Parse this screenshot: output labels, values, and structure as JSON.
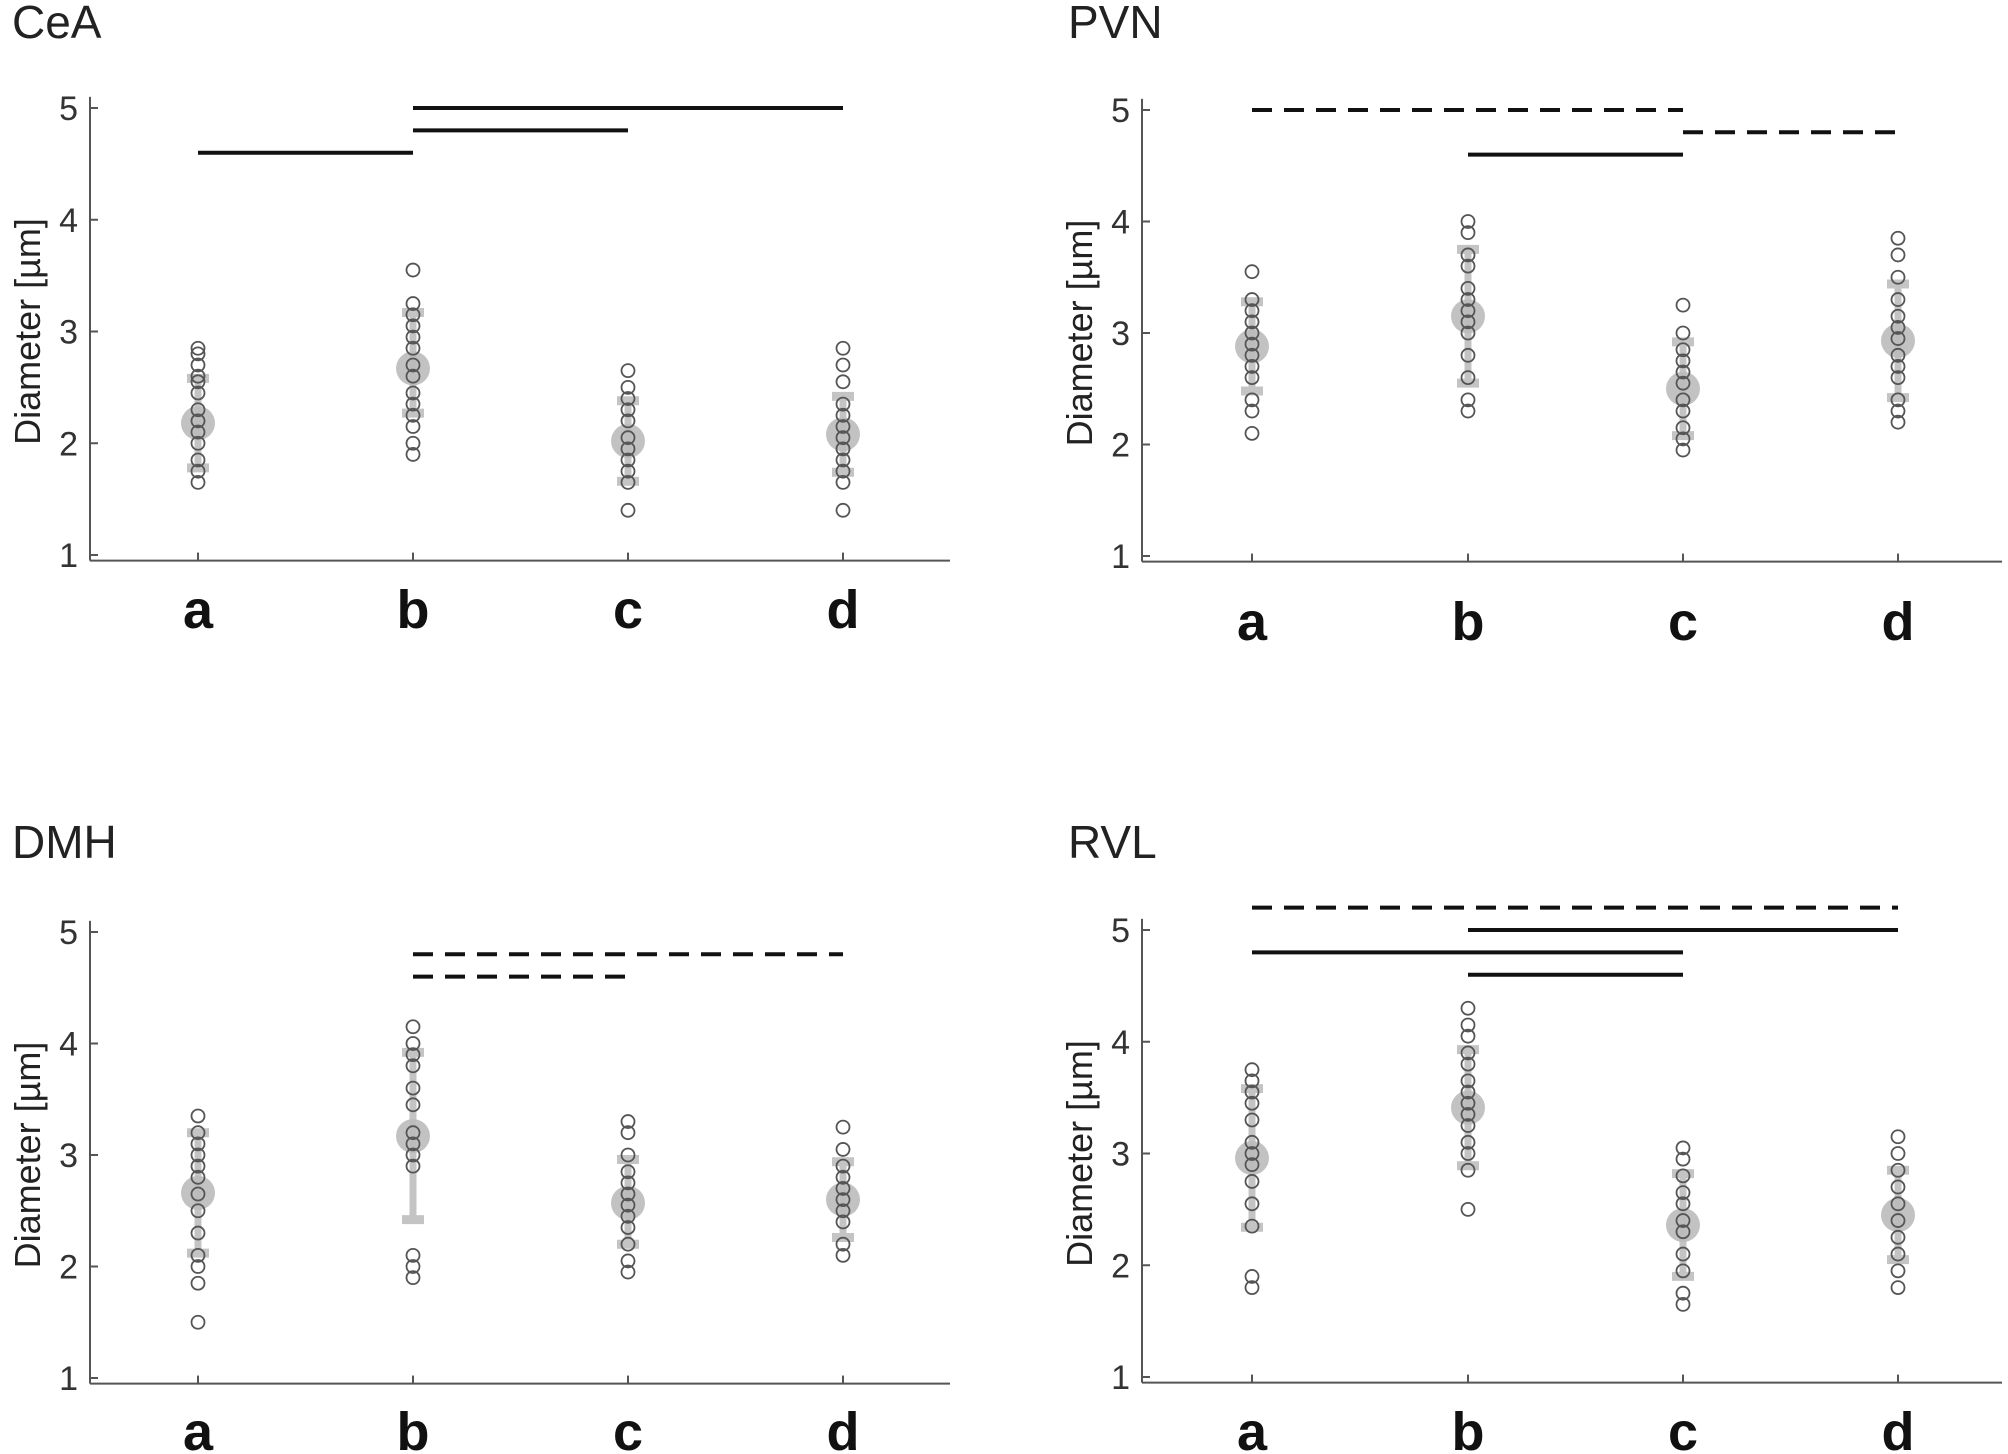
{
  "chart_data": [
    {
      "type": "scatter",
      "title": "CeA",
      "ylabel": "Diameter [µm]",
      "categories": [
        "a",
        "b",
        "c",
        "d"
      ],
      "yticks": [
        1,
        2,
        3,
        4,
        5
      ],
      "ylim": [
        0.95,
        5.1
      ],
      "points": [
        [
          1.65,
          1.75,
          1.85,
          2.0,
          2.1,
          2.2,
          2.3,
          2.45,
          2.55,
          2.6,
          2.7,
          2.8,
          2.85
        ],
        [
          1.9,
          2.0,
          2.15,
          2.25,
          2.35,
          2.45,
          2.6,
          2.7,
          2.85,
          2.95,
          3.05,
          3.15,
          3.25,
          3.55
        ],
        [
          1.4,
          1.65,
          1.75,
          1.85,
          1.95,
          2.05,
          2.2,
          2.3,
          2.4,
          2.5,
          2.65
        ],
        [
          1.4,
          1.65,
          1.75,
          1.85,
          1.95,
          2.05,
          2.15,
          2.25,
          2.35,
          2.55,
          2.7,
          2.85
        ]
      ],
      "mean": [
        2.18,
        2.67,
        2.02,
        2.08
      ],
      "sd": [
        [
          1.78,
          2.58
        ],
        [
          2.27,
          3.17
        ],
        [
          1.66,
          2.38
        ],
        [
          1.74,
          2.42
        ]
      ],
      "significance": [
        {
          "from": "a",
          "to": "b",
          "level": 4.6,
          "style": "solid"
        },
        {
          "from": "b",
          "to": "c",
          "level": 4.8,
          "style": "solid"
        },
        {
          "from": "b",
          "to": "d",
          "level": 5.0,
          "style": "solid"
        }
      ]
    },
    {
      "type": "scatter",
      "title": "PVN",
      "ylabel": "Diameter [µm]",
      "categories": [
        "a",
        "b",
        "c",
        "d"
      ],
      "yticks": [
        1,
        2,
        3,
        4,
        5
      ],
      "ylim": [
        0.95,
        5.1
      ],
      "points": [
        [
          2.1,
          2.3,
          2.4,
          2.6,
          2.7,
          2.8,
          2.9,
          3.0,
          3.1,
          3.2,
          3.3,
          3.55
        ],
        [
          2.3,
          2.4,
          2.6,
          2.8,
          3.0,
          3.1,
          3.2,
          3.3,
          3.4,
          3.6,
          3.7,
          3.9,
          4.0
        ],
        [
          1.95,
          2.05,
          2.15,
          2.3,
          2.4,
          2.55,
          2.65,
          2.75,
          2.85,
          3.0,
          3.25
        ],
        [
          2.2,
          2.3,
          2.4,
          2.6,
          2.7,
          2.8,
          2.95,
          3.05,
          3.15,
          3.3,
          3.5,
          3.7,
          3.85
        ]
      ],
      "mean": [
        2.88,
        3.15,
        2.5,
        2.93
      ],
      "sd": [
        [
          2.48,
          3.28
        ],
        [
          2.55,
          3.75
        ],
        [
          2.08,
          2.92
        ],
        [
          2.42,
          3.44
        ]
      ],
      "significance": [
        {
          "from": "a",
          "to": "c",
          "level": 5.0,
          "style": "dashed"
        },
        {
          "from": "c",
          "to": "d",
          "level": 4.8,
          "style": "dashed"
        },
        {
          "from": "b",
          "to": "c",
          "level": 4.6,
          "style": "solid"
        }
      ]
    },
    {
      "type": "scatter",
      "title": "DMH",
      "ylabel": "Diameter [µm]",
      "categories": [
        "a",
        "b",
        "c",
        "d"
      ],
      "yticks": [
        1,
        2,
        3,
        4,
        5
      ],
      "ylim": [
        0.95,
        5.1
      ],
      "points": [
        [
          1.5,
          1.85,
          2.0,
          2.1,
          2.3,
          2.5,
          2.65,
          2.8,
          2.9,
          3.0,
          3.1,
          3.2,
          3.35
        ],
        [
          1.9,
          2.0,
          2.1,
          2.9,
          3.0,
          3.1,
          3.2,
          3.45,
          3.6,
          3.8,
          3.9,
          4.0,
          4.15
        ],
        [
          1.95,
          2.05,
          2.2,
          2.35,
          2.45,
          2.55,
          2.65,
          2.75,
          2.85,
          3.0,
          3.2,
          3.3
        ],
        [
          2.1,
          2.2,
          2.4,
          2.5,
          2.6,
          2.7,
          2.8,
          2.9,
          3.05,
          3.25
        ]
      ],
      "mean": [
        2.66,
        3.17,
        2.57,
        2.6
      ],
      "sd": [
        [
          2.12,
          3.2
        ],
        [
          2.42,
          3.92
        ],
        [
          2.2,
          2.96
        ],
        [
          2.26,
          2.94
        ]
      ],
      "significance": [
        {
          "from": "b",
          "to": "d",
          "level": 4.8,
          "style": "dashed"
        },
        {
          "from": "b",
          "to": "c",
          "level": 4.6,
          "style": "dashed"
        }
      ]
    },
    {
      "type": "scatter",
      "title": "RVL",
      "ylabel": "Diameter [µm]",
      "categories": [
        "a",
        "b",
        "c",
        "d"
      ],
      "yticks": [
        1,
        2,
        3,
        4,
        5
      ],
      "ylim": [
        0.95,
        5.1
      ],
      "points": [
        [
          1.8,
          1.9,
          2.35,
          2.55,
          2.75,
          2.9,
          3.0,
          3.1,
          3.3,
          3.45,
          3.55,
          3.65,
          3.75
        ],
        [
          2.5,
          2.85,
          3.0,
          3.1,
          3.25,
          3.35,
          3.45,
          3.55,
          3.65,
          3.8,
          3.9,
          4.05,
          4.15,
          4.3
        ],
        [
          1.65,
          1.75,
          1.95,
          2.1,
          2.3,
          2.4,
          2.55,
          2.65,
          2.8,
          2.95,
          3.05
        ],
        [
          1.8,
          1.95,
          2.1,
          2.25,
          2.4,
          2.55,
          2.7,
          2.85,
          3.0,
          3.15
        ]
      ],
      "mean": [
        2.96,
        3.41,
        2.36,
        2.45
      ],
      "sd": [
        [
          2.34,
          3.58
        ],
        [
          2.89,
          3.93
        ],
        [
          1.9,
          2.82
        ],
        [
          2.05,
          2.85
        ]
      ],
      "significance": [
        {
          "from": "a",
          "to": "d",
          "level": 5.2,
          "style": "dashed"
        },
        {
          "from": "b",
          "to": "d",
          "level": 5.0,
          "style": "solid"
        },
        {
          "from": "a",
          "to": "c",
          "level": 4.8,
          "style": "solid"
        },
        {
          "from": "b",
          "to": "c",
          "level": 4.6,
          "style": "solid"
        }
      ]
    }
  ],
  "colors": {
    "points": "#555555",
    "mean_marker": "#bbbbbb",
    "sd_bar": "#c4c4c4",
    "axis": "#555555",
    "significance_line": "#111111"
  }
}
